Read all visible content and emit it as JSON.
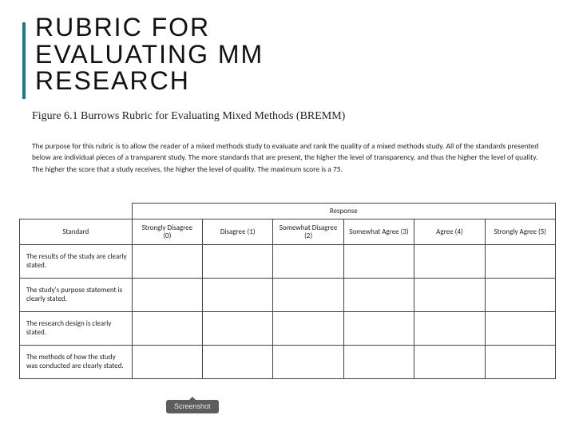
{
  "title": "RUBRIC FOR\nEVALUATING MM\nRESEARCH",
  "figure_caption": "Figure 6.1 Burrows Rubric for Evaluating Mixed Methods (BREMM)",
  "purpose": "The purpose for this rubric is to allow the reader of a mixed methods study to evaluate and rank the quality of a mixed methods study. All of the standards presented below are individual pieces of a transparent study. The more standards that are present, the higher the level of transparency, and thus the higher the level of quality. The higher the score that a study receives, the higher the level of quality. The maximum score is a 75.",
  "table": {
    "response_header": "Response",
    "standard_header": "Standard",
    "columns": [
      "Strongly Disagree (0)",
      "Disagree (1)",
      "Somewhat Disagree (2)",
      "Somewhat Agree (3)",
      "Agree (4)",
      "Strongly Agree (5)"
    ],
    "rows": [
      "The results of the study are clearly stated.",
      "The study's purpose statement is clearly stated.",
      "The research design is clearly stated.",
      "The methods of how the study was conducted are clearly stated."
    ]
  },
  "pill_label": "Screenshot",
  "colors": {
    "accent": "#1a7a8c",
    "text": "#222222",
    "border": "#444444",
    "pill_bg": "#5d5d5d",
    "pill_text": "#e8e8e8",
    "background": "#ffffff"
  }
}
